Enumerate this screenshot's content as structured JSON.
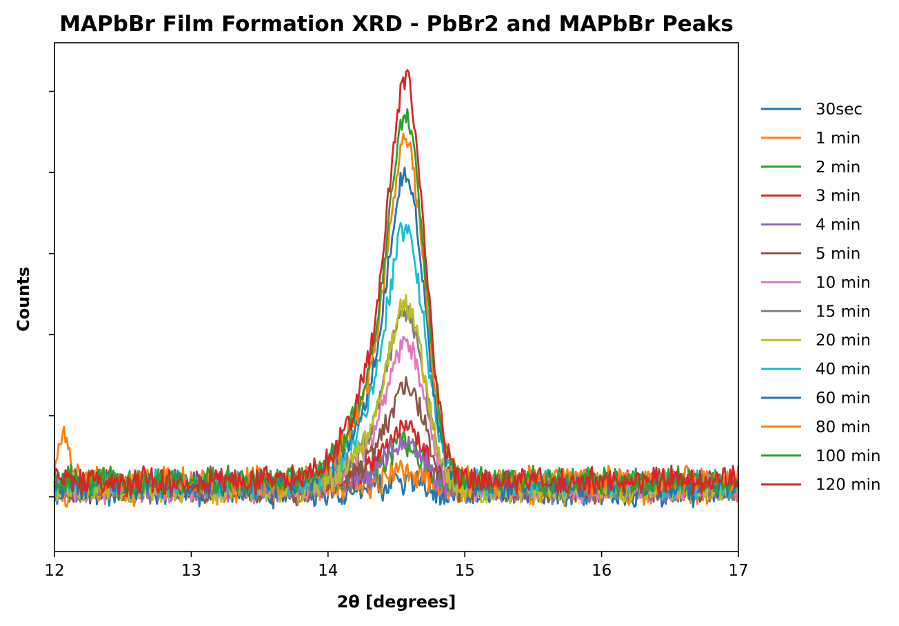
{
  "chart_data": {
    "type": "line",
    "title": "MAPbBr Film Formation XRD - PbBr2 and MAPbBr Peaks",
    "xlabel": "2θ [degrees]",
    "ylabel": "Counts",
    "xlim": [
      12,
      17
    ],
    "ylim": [
      -0.135,
      1.12
    ],
    "x_ticks": [
      12,
      13,
      14,
      15,
      16,
      17
    ],
    "x_tick_labels": [
      "12",
      "13",
      "14",
      "15",
      "16",
      "17"
    ],
    "y_ticks": [
      0,
      0.2,
      0.4,
      0.6,
      0.8,
      1.0
    ],
    "y_tick_labels_visible": false,
    "grid": false,
    "legend_placement": "outside-right",
    "peak": {
      "center": 14.58,
      "width": 0.13,
      "shoulder_center": 14.35,
      "shoulder_width": 0.2
    },
    "series": [
      {
        "name": "30sec",
        "color": "#1f77b4",
        "peak": 0.03,
        "baseline": 0.01
      },
      {
        "name": "1 min",
        "color": "#ff7f0e",
        "peak": 0.05,
        "baseline": 0.015
      },
      {
        "name": "2 min",
        "color": "#2ca02c",
        "peak": 0.11,
        "baseline": 0.03
      },
      {
        "name": "3 min",
        "color": "#d62728",
        "peak": 0.15,
        "baseline": 0.03
      },
      {
        "name": "4 min",
        "color": "#9467bd",
        "peak": 0.12,
        "baseline": 0.02
      },
      {
        "name": "5 min",
        "color": "#8c564b",
        "peak": 0.27,
        "baseline": 0.02
      },
      {
        "name": "10 min",
        "color": "#e377c2",
        "peak": 0.39,
        "baseline": 0.02
      },
      {
        "name": "15 min",
        "color": "#7f7f7f",
        "peak": 0.47,
        "baseline": 0.02
      },
      {
        "name": "20 min",
        "color": "#bcbd22",
        "peak": 0.48,
        "baseline": 0.02
      },
      {
        "name": "40 min",
        "color": "#17becf",
        "peak": 0.68,
        "baseline": 0.03
      },
      {
        "name": "60 min",
        "color": "#1f77b4",
        "peak": 0.82,
        "baseline": 0.03
      },
      {
        "name": "80 min",
        "color": "#ff7f0e",
        "peak": 0.89,
        "baseline": 0.04
      },
      {
        "name": "100 min",
        "color": "#2ca02c",
        "peak": 0.96,
        "baseline": 0.04
      },
      {
        "name": "120 min",
        "color": "#d62728",
        "peak": 1.06,
        "baseline": 0.04
      }
    ]
  }
}
